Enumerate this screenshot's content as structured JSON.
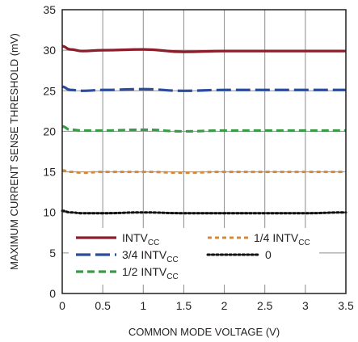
{
  "chart_data": {
    "type": "line",
    "title": "",
    "xlabel": "COMMON MODE VOLTAGE (V)",
    "ylabel": "MAXIMUM CURRENT SENSE THRESHOLD (mV)",
    "xlim": [
      0,
      3.5
    ],
    "ylim": [
      0,
      35
    ],
    "x_ticks": [
      0,
      0.5,
      1,
      1.5,
      2,
      2.5,
      3,
      3.5
    ],
    "x_tick_labels": [
      "0",
      "0.5",
      "1",
      "1.5",
      "2",
      "2.5",
      "3",
      "3.5"
    ],
    "y_ticks": [
      0,
      5,
      10,
      15,
      20,
      25,
      30,
      35
    ],
    "y_tick_labels": [
      "0",
      "5",
      "10",
      "15",
      "20",
      "25",
      "30",
      "35"
    ],
    "grid": true,
    "legend_position": "bottom",
    "series": [
      {
        "name": "INTV",
        "name_sub": "CC",
        "color": "#8c1d2b",
        "style": "solid",
        "x": [
          0,
          0.1,
          0.25,
          0.5,
          1.0,
          1.5,
          2.0,
          2.5,
          3.0,
          3.5
        ],
        "y": [
          30.5,
          30.1,
          29.9,
          30.0,
          30.1,
          29.8,
          29.9,
          29.9,
          29.9,
          29.9
        ]
      },
      {
        "name": "3/4 INTV",
        "name_sub": "CC",
        "color": "#2b4d9b",
        "style": "longdash",
        "x": [
          0,
          0.1,
          0.25,
          0.5,
          1.0,
          1.5,
          2.0,
          2.5,
          3.0,
          3.5
        ],
        "y": [
          25.5,
          25.1,
          25.0,
          25.1,
          25.2,
          25.0,
          25.1,
          25.1,
          25.1,
          25.1
        ]
      },
      {
        "name": "1/2 INTV",
        "name_sub": "CC",
        "color": "#3a9a48",
        "style": "dash",
        "x": [
          0,
          0.1,
          0.25,
          0.5,
          1.0,
          1.5,
          2.0,
          2.5,
          3.0,
          3.5
        ],
        "y": [
          20.6,
          20.2,
          20.1,
          20.1,
          20.2,
          20.0,
          20.1,
          20.1,
          20.1,
          20.1
        ]
      },
      {
        "name": "1/4 INTV",
        "name_sub": "CC",
        "color": "#d38a3b",
        "style": "shortdash",
        "x": [
          0,
          0.1,
          0.25,
          0.5,
          1.0,
          1.5,
          2.0,
          2.5,
          3.0,
          3.5
        ],
        "y": [
          15.2,
          15.0,
          14.9,
          15.0,
          15.0,
          14.9,
          15.0,
          15.0,
          15.0,
          15.0
        ]
      },
      {
        "name": "0",
        "name_sub": "",
        "color": "#111111",
        "style": "dot",
        "x": [
          0,
          0.1,
          0.25,
          0.5,
          1.0,
          1.5,
          2.0,
          2.5,
          3.0,
          3.5
        ],
        "y": [
          10.2,
          10.0,
          9.9,
          9.9,
          10.0,
          9.9,
          9.9,
          9.9,
          9.9,
          10.0
        ]
      }
    ]
  }
}
